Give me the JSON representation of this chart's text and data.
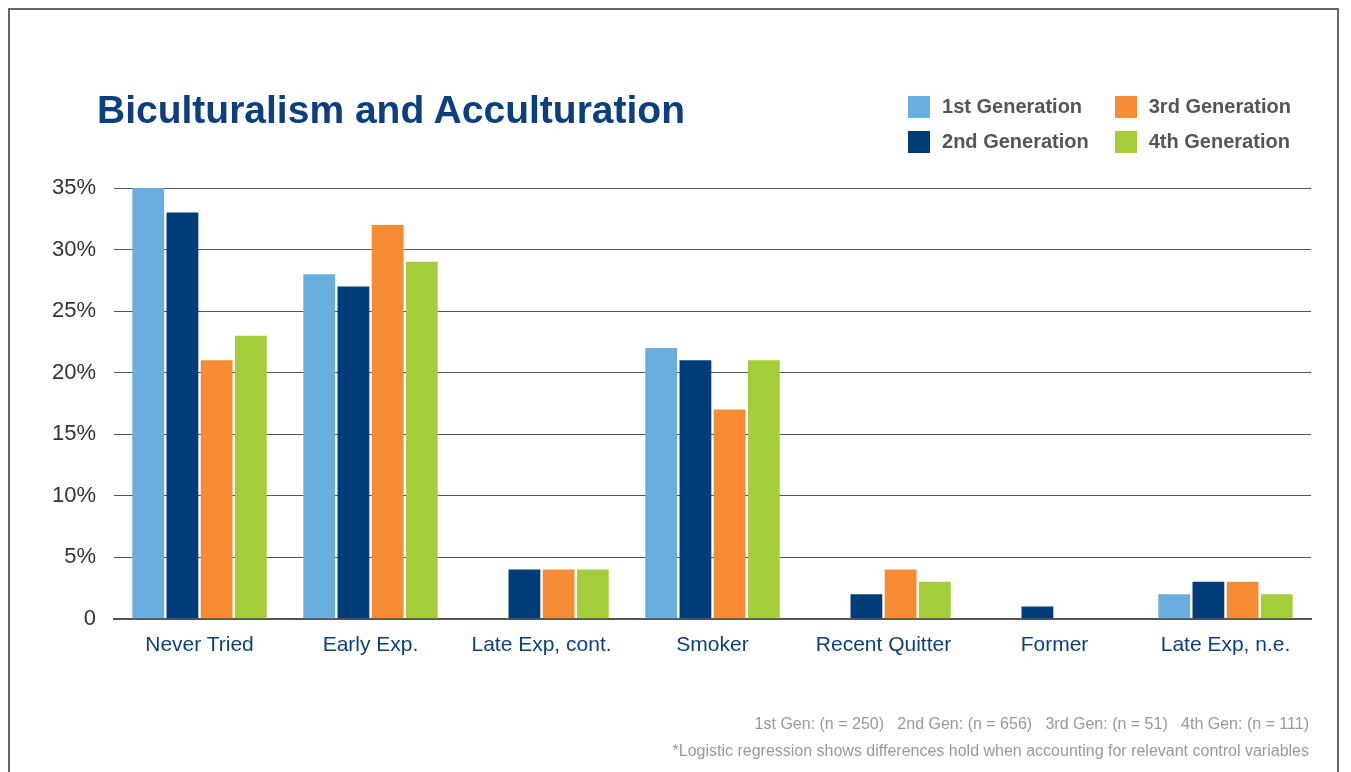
{
  "chart_data": {
    "type": "bar",
    "title": "Biculturalism and Acculturation",
    "categories": [
      "Never Tried",
      "Early Exp.",
      "Late Exp, cont.",
      "Smoker",
      "Recent Quitter",
      "Former",
      "Late Exp, n.e."
    ],
    "series": [
      {
        "name": "1st Generation",
        "color": "#6aaee0",
        "values": [
          35,
          28,
          0,
          22,
          0,
          0,
          2
        ]
      },
      {
        "name": "2nd Generation",
        "color": "#003b7a",
        "values": [
          33,
          27,
          4,
          21,
          2,
          1,
          3
        ]
      },
      {
        "name": "3rd Generation",
        "color": "#f58b35",
        "values": [
          21,
          32,
          4,
          17,
          4,
          0,
          3
        ]
      },
      {
        "name": "4th Generation",
        "color": "#a5cd39",
        "values": [
          23,
          29,
          4,
          21,
          3,
          0,
          2
        ]
      }
    ],
    "ylim": [
      0,
      35
    ],
    "yticks": [
      0,
      {
        "value": 5,
        "label": "5%"
      },
      {
        "value": 10,
        "label": "10%"
      },
      {
        "value": 15,
        "label": "15%"
      },
      {
        "value": 20,
        "label": "20%"
      },
      {
        "value": 25,
        "label": "25%"
      },
      {
        "value": 30,
        "label": "30%"
      },
      {
        "value": 35,
        "label": "35%"
      }
    ],
    "grid": "y",
    "legend": "top right",
    "annotations": [
      "1st Gen: (n = 250)   2nd Gen: (n = 656)   3rd Gen: (n = 51)   4th Gen: (n = 111)",
      "*Logistic regression shows differences hold when accounting for relevant control variables"
    ]
  }
}
